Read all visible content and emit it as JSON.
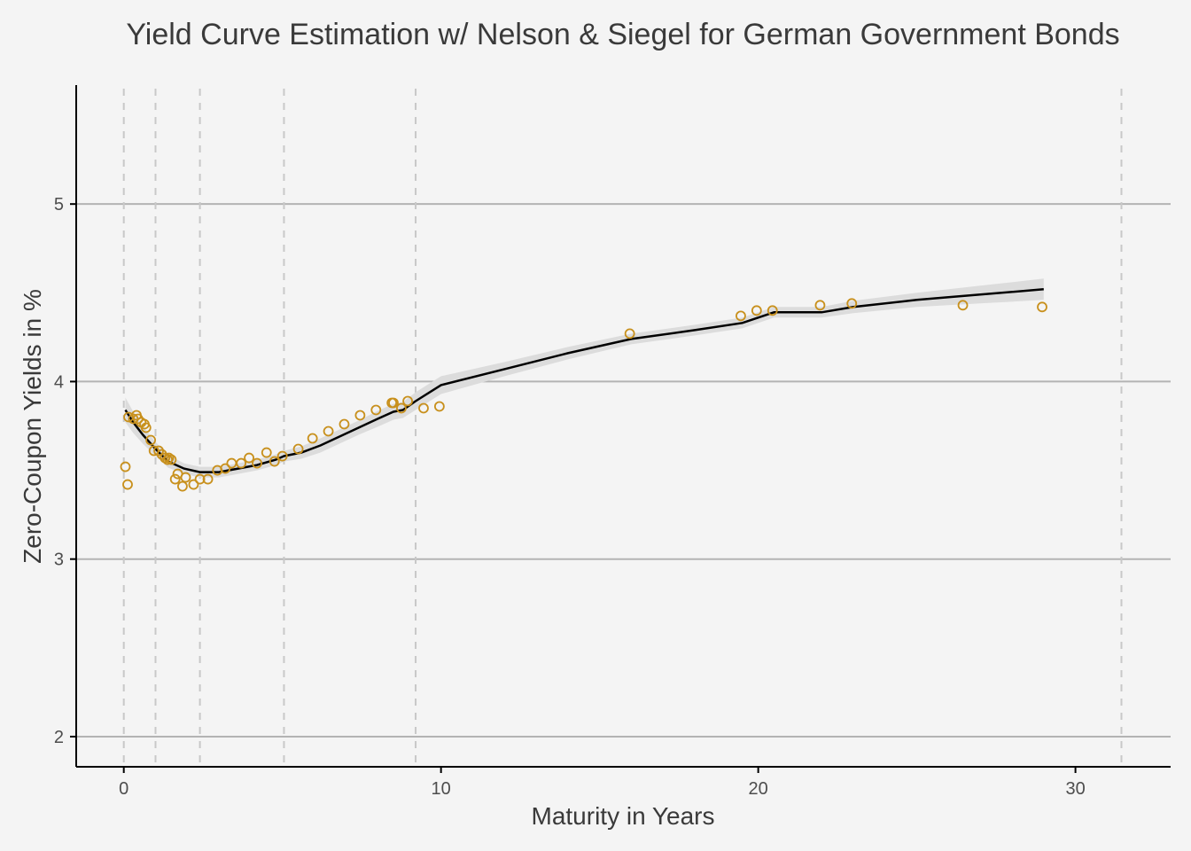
{
  "chart_data": {
    "type": "scatter",
    "title": "Yield Curve Estimation w/ Nelson & Siegel for German Government Bonds",
    "xlabel": "Maturity in Years",
    "ylabel": "Zero-Coupon Yields in %",
    "xlim": [
      -1.5,
      33
    ],
    "ylim": [
      1.83,
      5.67
    ],
    "x_ticks": [
      0,
      10,
      20,
      30
    ],
    "y_ticks": [
      2,
      3,
      4,
      5
    ],
    "grid": "horizontal major lines at y ticks",
    "knots": [
      0.0,
      1.0,
      2.4,
      5.05,
      9.2,
      31.45
    ],
    "colors": {
      "background": "#f4f4f4",
      "grid": "#b3b3b3",
      "knot_line": "#c8c8c8",
      "points": "#c8901c",
      "fit_line": "#000000",
      "ribbon": "#dcdcdc",
      "axis": "#000000"
    },
    "series": [
      {
        "type": "scatter",
        "x": [
          0.05,
          0.12,
          0.15,
          0.3,
          0.4,
          0.45,
          0.55,
          0.65,
          0.7,
          0.85,
          0.95,
          1.1,
          1.2,
          1.3,
          1.38,
          1.42,
          1.5,
          1.62,
          1.7,
          1.85,
          1.95,
          2.2,
          2.4,
          2.65,
          2.95,
          3.2,
          3.4,
          3.7,
          3.95,
          4.2,
          4.5,
          4.75,
          5.0,
          5.5,
          5.95,
          6.45,
          6.95,
          7.45,
          7.95,
          8.45,
          8.5,
          8.75,
          8.95,
          9.45,
          9.95,
          15.95,
          19.45,
          19.95,
          20.45,
          21.95,
          22.95,
          26.45,
          28.95
        ],
        "y": [
          3.52,
          3.42,
          3.8,
          3.79,
          3.81,
          3.79,
          3.77,
          3.76,
          3.74,
          3.67,
          3.61,
          3.61,
          3.59,
          3.57,
          3.56,
          3.57,
          3.56,
          3.45,
          3.48,
          3.41,
          3.46,
          3.42,
          3.45,
          3.45,
          3.5,
          3.51,
          3.54,
          3.54,
          3.57,
          3.54,
          3.6,
          3.55,
          3.58,
          3.62,
          3.68,
          3.72,
          3.76,
          3.81,
          3.84,
          3.88,
          3.88,
          3.85,
          3.89,
          3.85,
          3.86,
          4.27,
          4.37,
          4.4,
          4.4,
          4.43,
          4.44,
          4.43,
          4.42
        ]
      },
      {
        "type": "line",
        "x": [
          0.05,
          0.3,
          0.6,
          1.0,
          1.4,
          1.9,
          2.4,
          3.0,
          3.6,
          4.2,
          4.8,
          5.05,
          5.6,
          6.2,
          6.8,
          7.4,
          8.0,
          8.5,
          8.8,
          9.2,
          10.0,
          12.0,
          14.0,
          16.0,
          18.0,
          19.5,
          20.5,
          21.0,
          22.0,
          23.0,
          25.0,
          27.0,
          29.0
        ],
        "y": [
          3.84,
          3.77,
          3.7,
          3.62,
          3.55,
          3.51,
          3.49,
          3.49,
          3.51,
          3.53,
          3.56,
          3.58,
          3.6,
          3.64,
          3.69,
          3.74,
          3.79,
          3.83,
          3.84,
          3.89,
          3.98,
          4.07,
          4.16,
          4.24,
          4.29,
          4.33,
          4.39,
          4.39,
          4.39,
          4.42,
          4.46,
          4.49,
          4.52
        ],
        "band_width": [
          0.07,
          0.06,
          0.05,
          0.04,
          0.035,
          0.03,
          0.03,
          0.03,
          0.03,
          0.03,
          0.03,
          0.03,
          0.035,
          0.04,
          0.04,
          0.04,
          0.045,
          0.045,
          0.045,
          0.05,
          0.05,
          0.04,
          0.035,
          0.03,
          0.03,
          0.03,
          0.03,
          0.03,
          0.03,
          0.035,
          0.04,
          0.05,
          0.06
        ]
      }
    ]
  }
}
